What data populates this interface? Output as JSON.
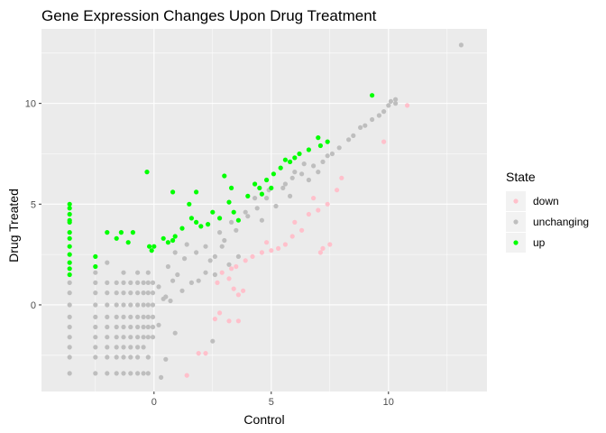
{
  "chart_data": {
    "type": "scatter",
    "title": "Gene Expression Changes Upon Drug Treatment",
    "xlabel": "Control",
    "ylabel": "Drug Treated",
    "xlim": [
      -4.8,
      14.2
    ],
    "ylim": [
      -4.3,
      13.7
    ],
    "x_ticks": [
      0,
      5,
      10
    ],
    "y_ticks": [
      0,
      5,
      10
    ],
    "x_tick_labels": [
      "0",
      "5",
      "10"
    ],
    "y_tick_labels": [
      "0",
      "5",
      "10"
    ],
    "grid": true,
    "panel_background": "#ebebeb",
    "legend": {
      "title": "State",
      "position": "right",
      "entries": [
        {
          "label": "down",
          "color": "#ffc0cb"
        },
        {
          "label": "unchanging",
          "color": "#bebebe"
        },
        {
          "label": "up",
          "color": "#00ff00"
        }
      ]
    },
    "series": [
      {
        "name": "unchanging",
        "color": "#bebebe",
        "points": [
          [
            -3.6,
            -3.4
          ],
          [
            -3.6,
            -2.6
          ],
          [
            -3.6,
            -2.1
          ],
          [
            -3.6,
            -1.6
          ],
          [
            -3.6,
            -1.1
          ],
          [
            -3.6,
            -0.6
          ],
          [
            -3.6,
            0.0
          ],
          [
            -3.6,
            0.6
          ],
          [
            -3.6,
            1.1
          ],
          [
            -2.5,
            -3.4
          ],
          [
            -2.5,
            -2.6
          ],
          [
            -2.5,
            -2.1
          ],
          [
            -2.5,
            -1.6
          ],
          [
            -2.5,
            -1.1
          ],
          [
            -2.5,
            -0.6
          ],
          [
            -2.5,
            0.0
          ],
          [
            -2.5,
            0.6
          ],
          [
            -2.5,
            1.1
          ],
          [
            -2.5,
            1.6
          ],
          [
            -2.0,
            -3.4
          ],
          [
            -2.0,
            -2.6
          ],
          [
            -2.0,
            -2.1
          ],
          [
            -2.0,
            -1.6
          ],
          [
            -2.0,
            -1.1
          ],
          [
            -2.0,
            -0.6
          ],
          [
            -2.0,
            0.0
          ],
          [
            -2.0,
            0.6
          ],
          [
            -2.0,
            1.1
          ],
          [
            -2.0,
            2.1
          ],
          [
            -1.6,
            -3.4
          ],
          [
            -1.6,
            -2.6
          ],
          [
            -1.6,
            -2.1
          ],
          [
            -1.6,
            -1.6
          ],
          [
            -1.6,
            -1.1
          ],
          [
            -1.6,
            -0.6
          ],
          [
            -1.6,
            0.0
          ],
          [
            -1.6,
            0.6
          ],
          [
            -1.6,
            1.1
          ],
          [
            -1.3,
            -3.4
          ],
          [
            -1.3,
            -2.6
          ],
          [
            -1.3,
            -2.1
          ],
          [
            -1.3,
            -1.6
          ],
          [
            -1.3,
            -1.1
          ],
          [
            -1.3,
            -0.6
          ],
          [
            -1.3,
            0.0
          ],
          [
            -1.3,
            0.6
          ],
          [
            -1.3,
            1.1
          ],
          [
            -1.3,
            1.6
          ],
          [
            -1.0,
            -3.4
          ],
          [
            -1.0,
            -2.6
          ],
          [
            -1.0,
            -2.1
          ],
          [
            -1.0,
            -1.6
          ],
          [
            -1.0,
            -1.1
          ],
          [
            -1.0,
            -0.6
          ],
          [
            -1.0,
            0.0
          ],
          [
            -1.0,
            0.6
          ],
          [
            -1.0,
            1.1
          ],
          [
            -0.7,
            -3.4
          ],
          [
            -0.7,
            -2.6
          ],
          [
            -0.7,
            -2.1
          ],
          [
            -0.7,
            -1.6
          ],
          [
            -0.7,
            -1.1
          ],
          [
            -0.7,
            -0.6
          ],
          [
            -0.7,
            0.0
          ],
          [
            -0.7,
            0.6
          ],
          [
            -0.7,
            1.1
          ],
          [
            -0.7,
            1.6
          ],
          [
            -0.45,
            -3.4
          ],
          [
            -0.45,
            -2.1
          ],
          [
            -0.45,
            -1.6
          ],
          [
            -0.45,
            -1.1
          ],
          [
            -0.45,
            -0.6
          ],
          [
            -0.45,
            0.0
          ],
          [
            -0.45,
            0.6
          ],
          [
            -0.45,
            1.1
          ],
          [
            -0.25,
            -3.4
          ],
          [
            -0.25,
            -2.6
          ],
          [
            -0.25,
            -1.6
          ],
          [
            -0.25,
            -1.1
          ],
          [
            -0.25,
            -0.6
          ],
          [
            -0.25,
            0.0
          ],
          [
            -0.25,
            0.6
          ],
          [
            -0.25,
            1.1
          ],
          [
            -0.25,
            1.6
          ],
          [
            -0.05,
            -1.6
          ],
          [
            -0.05,
            -1.1
          ],
          [
            -0.05,
            -0.6
          ],
          [
            -0.05,
            0.0
          ],
          [
            -0.05,
            0.6
          ],
          [
            -0.05,
            1.1
          ],
          [
            0.3,
            -3.6
          ],
          [
            0.5,
            -2.7
          ],
          [
            0.2,
            -1.0
          ],
          [
            0.9,
            -1.4
          ],
          [
            0.5,
            0.4
          ],
          [
            1.0,
            1.5
          ],
          [
            0.6,
            1.9
          ],
          [
            1.3,
            2.3
          ],
          [
            1.4,
            3.0
          ],
          [
            0.9,
            2.6
          ],
          [
            2.5,
            -1.8
          ],
          [
            2.6,
            2.4
          ],
          [
            2.9,
            2.9
          ],
          [
            3.0,
            3.2
          ],
          [
            3.5,
            3.7
          ],
          [
            3.3,
            4.1
          ],
          [
            4.0,
            4.4
          ],
          [
            4.4,
            4.8
          ],
          [
            4.3,
            5.3
          ],
          [
            4.8,
            5.3
          ],
          [
            4.9,
            5.7
          ],
          [
            5.5,
            5.8
          ],
          [
            5.6,
            6.0
          ],
          [
            5.9,
            6.3
          ],
          [
            6.3,
            6.5
          ],
          [
            6.8,
            6.9
          ],
          [
            7.2,
            7.1
          ],
          [
            7.4,
            7.4
          ],
          [
            7.6,
            7.5
          ],
          [
            7.9,
            7.8
          ],
          [
            8.3,
            8.2
          ],
          [
            8.5,
            8.4
          ],
          [
            8.8,
            8.8
          ],
          [
            9.0,
            8.9
          ],
          [
            9.3,
            9.2
          ],
          [
            9.6,
            9.4
          ],
          [
            9.8,
            9.6
          ],
          [
            10.0,
            9.9
          ],
          [
            10.1,
            10.1
          ],
          [
            10.3,
            10.0
          ],
          [
            10.3,
            10.2
          ],
          [
            13.1,
            12.9
          ],
          [
            2.2,
            1.6
          ],
          [
            2.6,
            1.5
          ],
          [
            3.2,
            2.0
          ],
          [
            3.6,
            2.4
          ],
          [
            1.8,
            2.6
          ],
          [
            2.2,
            2.9
          ],
          [
            2.8,
            3.6
          ],
          [
            3.9,
            4.6
          ],
          [
            1.6,
            1.1
          ],
          [
            1.2,
            0.7
          ],
          [
            0.7,
            0.2
          ],
          [
            0.4,
            0.3
          ],
          [
            0.2,
            0.9
          ],
          [
            0.8,
            1.2
          ],
          [
            1.9,
            1.2
          ],
          [
            2.4,
            2.2
          ],
          [
            4.6,
            4.2
          ],
          [
            5.2,
            4.9
          ],
          [
            5.8,
            5.4
          ],
          [
            6.6,
            6.2
          ],
          [
            7.0,
            6.6
          ],
          [
            6.0,
            6.6
          ],
          [
            6.4,
            7.0
          ]
        ]
      },
      {
        "name": "down",
        "color": "#ffc0cb",
        "points": [
          [
            1.4,
            -3.5
          ],
          [
            1.9,
            -2.4
          ],
          [
            2.2,
            -2.4
          ],
          [
            2.6,
            -0.7
          ],
          [
            2.8,
            -0.4
          ],
          [
            3.2,
            -0.8
          ],
          [
            3.6,
            -0.8
          ],
          [
            2.7,
            1.1
          ],
          [
            2.9,
            1.6
          ],
          [
            3.2,
            1.3
          ],
          [
            3.4,
            0.8
          ],
          [
            3.6,
            0.5
          ],
          [
            3.8,
            0.7
          ],
          [
            3.3,
            1.8
          ],
          [
            3.5,
            1.9
          ],
          [
            3.9,
            2.2
          ],
          [
            4.2,
            2.4
          ],
          [
            4.6,
            2.6
          ],
          [
            4.8,
            3.1
          ],
          [
            5.0,
            2.7
          ],
          [
            5.3,
            2.8
          ],
          [
            5.6,
            3.0
          ],
          [
            5.9,
            3.4
          ],
          [
            6.3,
            3.7
          ],
          [
            6.0,
            4.1
          ],
          [
            6.6,
            4.5
          ],
          [
            7.0,
            4.7
          ],
          [
            7.4,
            5.0
          ],
          [
            6.8,
            5.3
          ],
          [
            7.8,
            5.7
          ],
          [
            8.0,
            6.3
          ],
          [
            7.2,
            2.8
          ],
          [
            7.1,
            2.6
          ],
          [
            7.5,
            3.0
          ],
          [
            9.8,
            8.1
          ],
          [
            10.8,
            9.9
          ]
        ]
      },
      {
        "name": "up",
        "color": "#00ff00",
        "points": [
          [
            -3.6,
            5.0
          ],
          [
            -3.6,
            4.5
          ],
          [
            -3.6,
            4.1
          ],
          [
            -3.6,
            3.6
          ],
          [
            -3.6,
            3.3
          ],
          [
            -3.6,
            2.9
          ],
          [
            -3.6,
            2.5
          ],
          [
            -3.6,
            2.1
          ],
          [
            -3.6,
            1.8
          ],
          [
            -3.6,
            1.5
          ],
          [
            -3.6,
            4.8
          ],
          [
            -3.6,
            4.2
          ],
          [
            -2.5,
            2.4
          ],
          [
            -2.5,
            1.9
          ],
          [
            -2.0,
            3.6
          ],
          [
            -1.6,
            3.3
          ],
          [
            -1.4,
            3.6
          ],
          [
            -1.1,
            3.1
          ],
          [
            -0.9,
            3.6
          ],
          [
            -0.3,
            6.6
          ],
          [
            -0.2,
            2.9
          ],
          [
            -0.1,
            2.7
          ],
          [
            0.0,
            2.9
          ],
          [
            0.4,
            3.3
          ],
          [
            0.6,
            3.1
          ],
          [
            0.8,
            3.2
          ],
          [
            0.9,
            3.4
          ],
          [
            1.2,
            3.8
          ],
          [
            1.6,
            4.3
          ],
          [
            1.8,
            4.1
          ],
          [
            2.0,
            3.9
          ],
          [
            2.3,
            4.0
          ],
          [
            2.5,
            4.6
          ],
          [
            2.8,
            4.3
          ],
          [
            3.2,
            5.1
          ],
          [
            3.4,
            4.6
          ],
          [
            3.6,
            4.2
          ],
          [
            4.0,
            5.4
          ],
          [
            4.5,
            5.8
          ],
          [
            4.8,
            6.2
          ],
          [
            5.1,
            6.5
          ],
          [
            5.4,
            6.8
          ],
          [
            5.8,
            7.1
          ],
          [
            6.2,
            7.5
          ],
          [
            6.6,
            7.7
          ],
          [
            7.1,
            7.9
          ],
          [
            7.4,
            8.1
          ],
          [
            9.3,
            10.4
          ],
          [
            0.8,
            5.6
          ],
          [
            1.5,
            5.0
          ],
          [
            1.8,
            5.6
          ],
          [
            3.0,
            6.4
          ],
          [
            3.3,
            5.8
          ],
          [
            4.3,
            6.0
          ],
          [
            4.6,
            5.5
          ],
          [
            5.0,
            5.8
          ],
          [
            5.6,
            7.2
          ],
          [
            6.0,
            7.3
          ],
          [
            7.0,
            8.3
          ]
        ]
      }
    ]
  }
}
